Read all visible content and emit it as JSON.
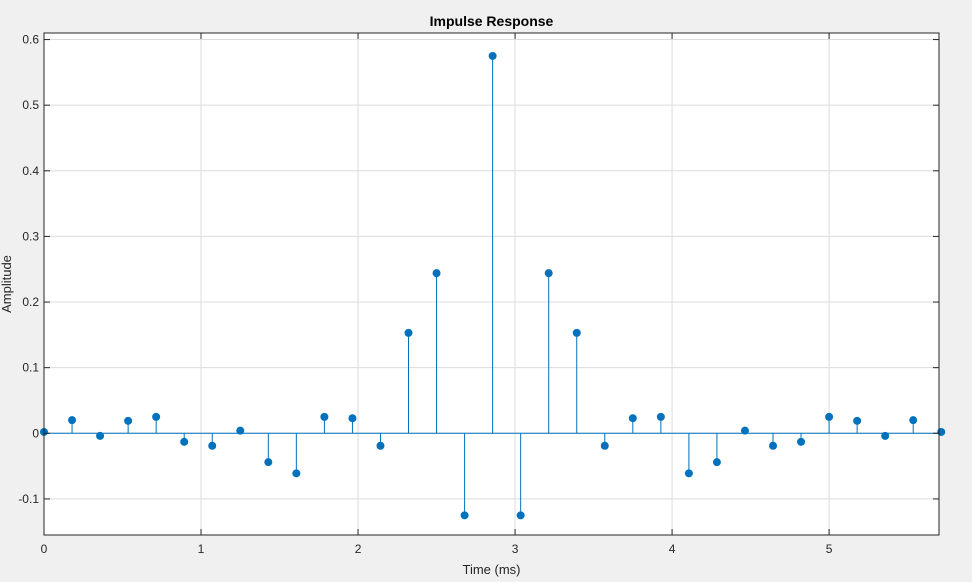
{
  "chart_data": {
    "type": "stem",
    "title": "Impulse Response",
    "xlabel": "Time (ms)",
    "ylabel": "Amplitude",
    "xlim": [
      0,
      5.7
    ],
    "ylim": [
      -0.155,
      0.61
    ],
    "xticks": [
      0,
      1,
      2,
      3,
      4,
      5
    ],
    "xtick_labels": [
      "0",
      "1",
      "2",
      "3",
      "4",
      "5"
    ],
    "yticks": [
      -0.1,
      0,
      0.1,
      0.2,
      0.3,
      0.4,
      0.5,
      0.6
    ],
    "ytick_labels": [
      "-0.1",
      "0",
      "0.1",
      "0.2",
      "0.3",
      "0.4",
      "0.5",
      "0.6"
    ],
    "grid": true,
    "series": [
      {
        "color": "#0072bd",
        "x": [
          0,
          0.1786,
          0.3571,
          0.5357,
          0.7143,
          0.8929,
          1.0714,
          1.25,
          1.4286,
          1.6071,
          1.7857,
          1.9643,
          2.1429,
          2.3214,
          2.5,
          2.6786,
          2.8571,
          3.0357,
          3.2143,
          3.3929,
          3.5714,
          3.75,
          3.9286,
          4.1071,
          4.2857,
          4.4643,
          4.6429,
          4.8214,
          5.0,
          5.1786,
          5.3571,
          5.5357,
          5.7143
        ],
        "values": [
          0.002,
          0.02,
          -0.004,
          0.019,
          0.025,
          -0.013,
          -0.019,
          0.004,
          -0.044,
          -0.061,
          0.025,
          0.023,
          -0.019,
          0.153,
          0.244,
          -0.125,
          0.575,
          -0.125,
          0.244,
          0.153,
          -0.019,
          0.023,
          0.025,
          -0.061,
          -0.044,
          0.004,
          -0.019,
          -0.013,
          0.025,
          0.019,
          -0.004,
          0.02,
          0.002
        ]
      }
    ]
  }
}
